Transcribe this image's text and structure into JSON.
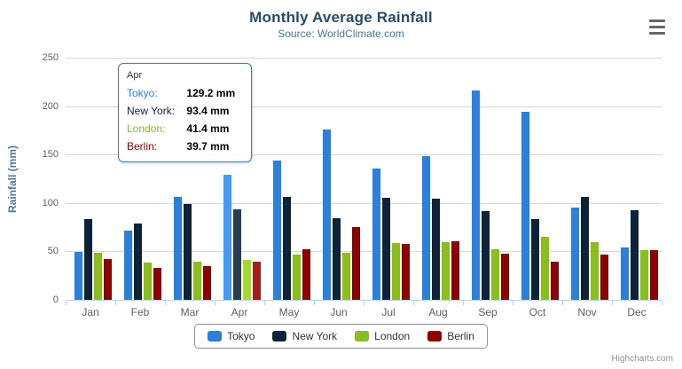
{
  "chart": {
    "title": "Monthly Average Rainfall",
    "subtitle": "Source: WorldClimate.com",
    "credits": "Highcharts.com"
  },
  "chart_data": {
    "type": "bar",
    "title": "Monthly Average Rainfall",
    "subtitle": "Source: WorldClimate.com",
    "xlabel": "",
    "ylabel": "Rainfall (mm)",
    "ylim": [
      0,
      250
    ],
    "yticks": [
      0,
      50,
      100,
      150,
      200,
      250
    ],
    "grid": true,
    "legend_position": "bottom",
    "categories": [
      "Jan",
      "Feb",
      "Mar",
      "Apr",
      "May",
      "Jun",
      "Jul",
      "Aug",
      "Sep",
      "Oct",
      "Nov",
      "Dec"
    ],
    "series": [
      {
        "name": "Tokyo",
        "color": "#2f7ed8",
        "values": [
          49.9,
          71.5,
          106.4,
          129.2,
          144.0,
          176.0,
          135.6,
          148.5,
          216.4,
          194.1,
          95.6,
          54.4
        ]
      },
      {
        "name": "New York",
        "color": "#0d233a",
        "values": [
          83.6,
          78.8,
          98.5,
          93.4,
          106.0,
          84.5,
          105.0,
          104.3,
          91.2,
          83.5,
          106.6,
          92.3
        ]
      },
      {
        "name": "London",
        "color": "#8bbc21",
        "values": [
          48.9,
          38.8,
          39.3,
          41.4,
          47.0,
          48.3,
          59.0,
          59.6,
          52.4,
          65.2,
          59.3,
          51.2
        ]
      },
      {
        "name": "Berlin",
        "color": "#910000",
        "values": [
          42.4,
          33.2,
          34.5,
          39.7,
          52.6,
          75.5,
          57.4,
          60.4,
          47.6,
          39.1,
          46.8,
          51.1
        ]
      }
    ],
    "hovered_category": "Apr"
  },
  "tooltip": {
    "header": "Apr",
    "border_color": "#2f7ed8",
    "rows": [
      {
        "name": "Tokyo",
        "color": "#2f7ed8",
        "value": "129.2 mm"
      },
      {
        "name": "New York",
        "color": "#0d233a",
        "value": "93.4 mm"
      },
      {
        "name": "London",
        "color": "#8bbc21",
        "value": "41.4 mm"
      },
      {
        "name": "Berlin",
        "color": "#910000",
        "value": "39.7 mm"
      }
    ]
  },
  "colors": {
    "background": "#ffffff",
    "title": "#274b6d",
    "subtitle": "#4d759e",
    "axis_title": "#4d759e",
    "axis_label": "#606060",
    "grid": "#d8d8d8",
    "axis_line": "#c0d0e0",
    "legend_border": "#909090",
    "legend_text": "#333333",
    "credits": "#909090",
    "export_icon": "#666666"
  }
}
